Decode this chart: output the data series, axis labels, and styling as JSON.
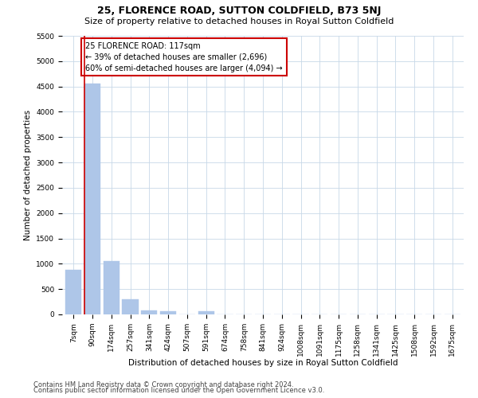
{
  "title": "25, FLORENCE ROAD, SUTTON COLDFIELD, B73 5NJ",
  "subtitle": "Size of property relative to detached houses in Royal Sutton Coldfield",
  "xlabel": "Distribution of detached houses by size in Royal Sutton Coldfield",
  "ylabel": "Number of detached properties",
  "footnote1": "Contains HM Land Registry data © Crown copyright and database right 2024.",
  "footnote2": "Contains public sector information licensed under the Open Government Licence v3.0.",
  "annotation_line1": "25 FLORENCE ROAD: 117sqm",
  "annotation_line2": "← 39% of detached houses are smaller (2,696)",
  "annotation_line3": "60% of semi-detached houses are larger (4,094) →",
  "bar_color": "#aec6e8",
  "property_line_color": "#cc0000",
  "annotation_box_color": "#cc0000",
  "categories": [
    "7sqm",
    "90sqm",
    "174sqm",
    "257sqm",
    "341sqm",
    "424sqm",
    "507sqm",
    "591sqm",
    "674sqm",
    "758sqm",
    "841sqm",
    "924sqm",
    "1008sqm",
    "1091sqm",
    "1175sqm",
    "1258sqm",
    "1341sqm",
    "1425sqm",
    "1508sqm",
    "1592sqm",
    "1675sqm"
  ],
  "values": [
    880,
    4560,
    1060,
    295,
    75,
    60,
    0,
    70,
    0,
    0,
    0,
    0,
    0,
    0,
    0,
    0,
    0,
    0,
    0,
    0,
    0
  ],
  "property_bar_index": 1,
  "ylim": [
    0,
    5500
  ],
  "yticks": [
    0,
    500,
    1000,
    1500,
    2000,
    2500,
    3000,
    3500,
    4000,
    4500,
    5000,
    5500
  ],
  "background_color": "#ffffff",
  "grid_color": "#c8d8e8",
  "title_fontsize": 9,
  "subtitle_fontsize": 8,
  "axis_label_fontsize": 7.5,
  "tick_fontsize": 6.5,
  "annotation_fontsize": 7,
  "footnote_fontsize": 6
}
